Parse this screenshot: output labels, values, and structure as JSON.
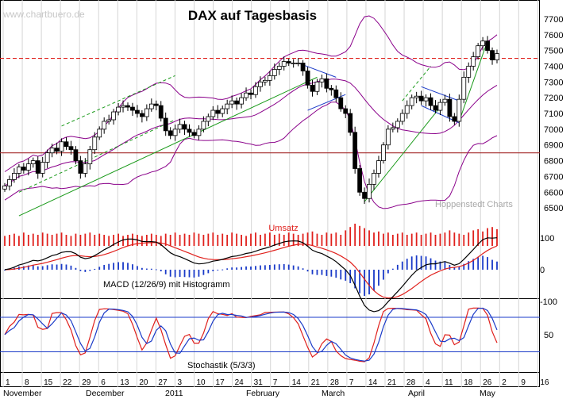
{
  "chart_data": [
    {
      "type": "candlestick",
      "title": "DAX auf Tagesbasis",
      "watermark": "www.chartbuero.de",
      "credit": "Hoppenstedt Charts",
      "y_ticks": [
        6500,
        6600,
        6700,
        6800,
        6900,
        7000,
        7100,
        7200,
        7300,
        7400,
        7500,
        7600,
        7700
      ],
      "ylim": [
        6400,
        7750
      ],
      "horizontal_lines": [
        {
          "value": 6850,
          "style": "solid",
          "color": "#a52a2a"
        },
        {
          "value": 7450,
          "style": "dashed",
          "color": "#e0201c"
        }
      ],
      "series": [
        {
          "name": "Kurs",
          "values": [
            6640,
            6680,
            6720,
            6760,
            6740,
            6780,
            6800,
            6720,
            6790,
            6850,
            6880,
            6860,
            6920,
            6890,
            6870,
            6800,
            6720,
            6780,
            6870,
            6950,
            7000,
            7050,
            7060,
            7110,
            7140,
            7150,
            7140,
            7120,
            7100,
            7080,
            7130,
            7160,
            7150,
            7070,
            6990,
            6960,
            7000,
            7030,
            7000,
            6980,
            6960,
            7000,
            7050,
            7080,
            7120,
            7100,
            7130,
            7160,
            7180,
            7160,
            7200,
            7230,
            7220,
            7270,
            7300,
            7310,
            7340,
            7380,
            7400,
            7430,
            7420,
            7420,
            7420,
            7370,
            7280,
            7240,
            7300,
            7320,
            7260,
            7250,
            7200,
            7130,
            7100,
            6980,
            6750,
            6600,
            6560,
            6650,
            6720,
            6800,
            6900,
            7000,
            7010,
            7050,
            7100,
            7150,
            7200,
            7210,
            7180,
            7200,
            7150,
            7120,
            7170,
            7190,
            7080,
            7050,
            7190,
            7330,
            7400,
            7460,
            7530,
            7560,
            7500,
            7440,
            7480
          ]
        }
      ]
    },
    {
      "type": "bar",
      "title": "Umsatz",
      "series": [
        {
          "name": "Umsatz",
          "values": [
            0.45,
            0.5,
            0.55,
            0.45,
            0.6,
            0.5,
            0.55,
            0.5,
            0.6,
            0.55,
            0.5,
            0.55,
            0.6,
            0.5,
            0.45,
            0.55,
            0.5,
            0.55,
            0.6,
            0.5,
            0.55,
            0.5,
            0.45,
            0.5,
            0.55,
            0.45,
            0.5,
            0.55,
            0.5,
            0.45,
            0.5,
            0.55,
            0.5,
            0.45,
            0.55,
            0.5,
            0.6,
            0.5,
            0.55,
            0.5,
            0.6,
            0.55,
            0.5,
            0.55,
            0.6,
            0.5,
            0.55,
            0.5,
            0.6,
            0.55,
            0.5,
            0.45,
            0.55,
            0.6,
            0.5,
            0.55,
            0.6,
            0.5,
            0.55,
            0.5,
            0.6,
            0.55,
            0.5,
            0.55,
            0.6,
            0.65,
            0.55,
            0.5,
            0.6,
            0.55,
            0.6,
            0.5,
            0.7,
            0.85,
            1.0,
            0.9,
            0.8,
            0.7,
            0.6,
            0.65,
            0.55,
            0.6,
            0.5,
            0.55,
            0.6,
            0.5,
            0.55,
            0.6,
            0.5,
            0.55,
            0.6,
            0.5,
            0.55,
            0.6,
            0.7,
            0.6,
            0.55,
            0.5,
            0.6,
            0.7,
            0.75,
            0.65,
            0.8,
            0.85,
            0.75
          ]
        }
      ]
    },
    {
      "type": "line",
      "title": "MACD (12/26/9) mit Histogramm",
      "y_ticks": [
        -100,
        0,
        100
      ],
      "ylim": [
        -180,
        140
      ]
    },
    {
      "type": "line",
      "title": "Stochastik (5/3/3)",
      "y_ticks": [
        50
      ],
      "ylim": [
        0,
        100
      ],
      "horizontal_lines": [
        80,
        20
      ]
    }
  ],
  "x_axis": {
    "day_labels": [
      "1",
      "8",
      "15",
      "22",
      "29",
      "6",
      "13",
      "20",
      "27",
      "3",
      "10",
      "17",
      "24",
      "31",
      "7",
      "14",
      "21",
      "28",
      "7",
      "14",
      "21",
      "28",
      "4",
      "11",
      "18",
      "26",
      "2",
      "9",
      "16"
    ],
    "month_labels": [
      "November",
      "December",
      "2011",
      "February",
      "March",
      "April",
      "May"
    ]
  }
}
